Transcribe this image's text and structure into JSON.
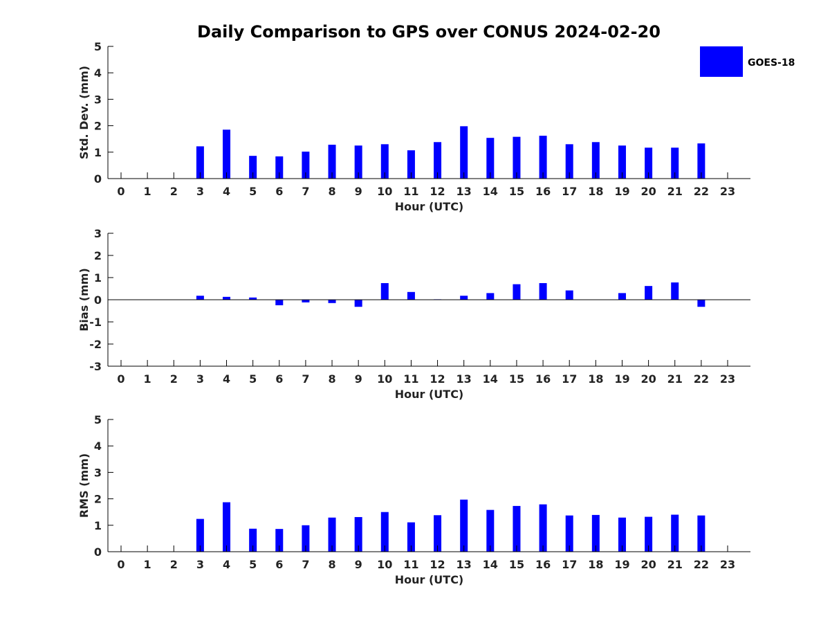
{
  "chart_data": {
    "title": "Daily Comparison to GPS over CONUS 2024-02-20",
    "legend": {
      "label": "GOES-18",
      "color": "#0000ff",
      "placement": "top-right"
    },
    "xlabel": "Hour (UTC)",
    "categories": [
      "0",
      "1",
      "2",
      "3",
      "4",
      "5",
      "6",
      "7",
      "8",
      "9",
      "10",
      "11",
      "12",
      "13",
      "14",
      "15",
      "16",
      "17",
      "18",
      "19",
      "20",
      "21",
      "22",
      "23"
    ],
    "panels": [
      {
        "type": "bar",
        "ylabel": "Std. Dev. (mm)",
        "ylim": [
          0,
          5
        ],
        "yticks": [
          "0",
          "1",
          "2",
          "3",
          "4",
          "5"
        ],
        "values": [
          null,
          null,
          null,
          1.22,
          1.85,
          0.86,
          0.84,
          1.02,
          1.28,
          1.25,
          1.3,
          1.07,
          1.38,
          1.98,
          1.54,
          1.58,
          1.62,
          1.3,
          1.38,
          1.25,
          1.17,
          1.17,
          1.33,
          null
        ]
      },
      {
        "type": "bar",
        "ylabel": "Bias (mm)",
        "ylim": [
          -3,
          3
        ],
        "yticks": [
          "-3",
          "-2",
          "-1",
          "0",
          "1",
          "2",
          "3"
        ],
        "values": [
          null,
          null,
          null,
          0.18,
          0.13,
          0.1,
          -0.25,
          -0.12,
          -0.15,
          -0.32,
          0.75,
          0.35,
          0.02,
          0.18,
          0.3,
          0.7,
          0.75,
          0.42,
          0.01,
          0.3,
          0.62,
          0.78,
          -0.32,
          null
        ]
      },
      {
        "type": "bar",
        "ylabel": "RMS (mm)",
        "ylim": [
          0,
          5
        ],
        "yticks": [
          "0",
          "1",
          "2",
          "3",
          "4",
          "5"
        ],
        "values": [
          null,
          null,
          null,
          1.24,
          1.87,
          0.87,
          0.86,
          1.0,
          1.29,
          1.31,
          1.5,
          1.11,
          1.38,
          1.97,
          1.58,
          1.73,
          1.79,
          1.37,
          1.39,
          1.29,
          1.32,
          1.4,
          1.37,
          null
        ]
      }
    ]
  }
}
